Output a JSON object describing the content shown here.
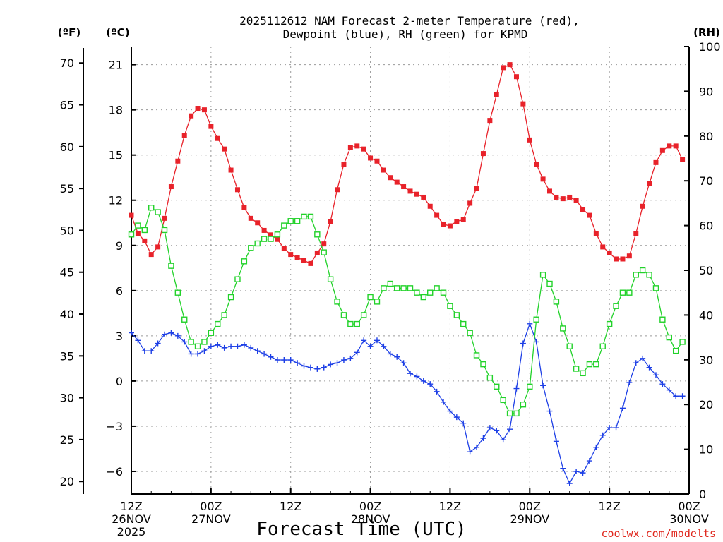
{
  "chart_data": {
    "type": "line",
    "title_line1": "2025112612 NAM Forecast 2-meter Temperature (red),",
    "title_line2": "Dewpoint (blue), RH (green) for KPMD",
    "xlabel": "Forecast Time (UTC)",
    "credit": "coolwx.com/modelts",
    "units": {
      "fahrenheit": "(ºF)",
      "celsius": "(ºC)",
      "rh": "(RH)"
    },
    "x_ticks": [
      {
        "hour": 0,
        "label1": "12Z",
        "label2": "26NOV",
        "label3": "2025"
      },
      {
        "hour": 12,
        "label1": "00Z",
        "label2": "27NOV",
        "label3": ""
      },
      {
        "hour": 24,
        "label1": "12Z",
        "label2": "",
        "label3": ""
      },
      {
        "hour": 36,
        "label1": "00Z",
        "label2": "28NOV",
        "label3": ""
      },
      {
        "hour": 48,
        "label1": "12Z",
        "label2": "",
        "label3": ""
      },
      {
        "hour": 60,
        "label1": "00Z",
        "label2": "29NOV",
        "label3": ""
      },
      {
        "hour": 72,
        "label1": "12Z",
        "label2": "",
        "label3": ""
      },
      {
        "hour": 84,
        "label1": "00Z",
        "label2": "30NOV",
        "label3": ""
      }
    ],
    "x_range": [
      0,
      84
    ],
    "celsius_range": [
      -7.5,
      22.2
    ],
    "celsius_ticks": [
      "21",
      "18",
      "15",
      "12",
      "9",
      "6",
      "3",
      "0",
      "−3",
      "−6"
    ],
    "fahrenheit_ticks": [
      "70",
      "65",
      "60",
      "55",
      "50",
      "45",
      "40",
      "35",
      "30",
      "25",
      "20"
    ],
    "rh_range": [
      0,
      100
    ],
    "rh_ticks": [
      "100",
      "90",
      "80",
      "70",
      "60",
      "50",
      "40",
      "30",
      "20",
      "10",
      "0"
    ],
    "series": [
      {
        "name": "Temperature",
        "unit": "C",
        "color": "#e8222a",
        "marker": "filled-square",
        "values": [
          11.0,
          9.8,
          9.3,
          8.4,
          8.9,
          10.8,
          12.9,
          14.6,
          16.3,
          17.6,
          18.1,
          18.0,
          16.9,
          16.1,
          15.4,
          14.0,
          12.7,
          11.5,
          10.8,
          10.5,
          10.0,
          9.7,
          9.4,
          8.8,
          8.4,
          8.2,
          8.0,
          7.8,
          8.5,
          9.1,
          10.6,
          12.7,
          14.4,
          15.5,
          15.6,
          15.4,
          14.8,
          14.6,
          14.0,
          13.5,
          13.2,
          12.9,
          12.6,
          12.4,
          12.2,
          11.6,
          11.0,
          10.4,
          10.3,
          10.6,
          10.7,
          11.8,
          12.8,
          15.1,
          17.3,
          19.0,
          20.8,
          21.0,
          20.2,
          18.4,
          16.0,
          14.4,
          13.4,
          12.6,
          12.2,
          12.1,
          12.2,
          12.0,
          11.4,
          11.0,
          9.8,
          8.9,
          8.5,
          8.1,
          8.1,
          8.3,
          9.8,
          11.6,
          13.1,
          14.5,
          15.3,
          15.6,
          15.6,
          14.7
        ]
      },
      {
        "name": "Dewpoint",
        "unit": "C",
        "color": "#1d3fe6",
        "marker": "plus",
        "values": [
          3.2,
          2.7,
          2.0,
          2.0,
          2.5,
          3.1,
          3.2,
          3.0,
          2.6,
          1.8,
          1.8,
          2.0,
          2.3,
          2.4,
          2.2,
          2.3,
          2.3,
          2.4,
          2.2,
          2.0,
          1.8,
          1.6,
          1.4,
          1.4,
          1.4,
          1.2,
          1.0,
          0.9,
          0.8,
          0.9,
          1.1,
          1.2,
          1.4,
          1.5,
          1.9,
          2.7,
          2.3,
          2.7,
          2.3,
          1.8,
          1.6,
          1.2,
          0.5,
          0.3,
          0.0,
          -0.2,
          -0.7,
          -1.4,
          -2.0,
          -2.4,
          -2.8,
          -4.7,
          -4.4,
          -3.8,
          -3.1,
          -3.3,
          -3.9,
          -3.2,
          -0.5,
          2.5,
          3.8,
          2.6,
          -0.3,
          -2.0,
          -4.0,
          -5.8,
          -6.8,
          -6.0,
          -6.1,
          -5.3,
          -4.4,
          -3.6,
          -3.1,
          -3.1,
          -1.8,
          -0.1,
          1.2,
          1.5,
          0.9,
          0.4,
          -0.2,
          -0.6,
          -1.0,
          -1.0
        ]
      },
      {
        "name": "RH",
        "unit": "%",
        "color": "#22d22a",
        "marker": "open-square",
        "values": [
          58,
          60,
          59,
          64,
          63,
          59,
          51,
          45,
          39,
          34,
          33,
          34,
          36,
          38,
          40,
          44,
          48,
          52,
          55,
          56,
          57,
          57,
          58,
          60,
          61,
          61,
          62,
          62,
          58,
          54,
          48,
          43,
          40,
          38,
          38,
          40,
          44,
          43,
          46,
          47,
          46,
          46,
          46,
          45,
          44,
          45,
          46,
          45,
          42,
          40,
          38,
          36,
          31,
          29,
          26,
          24,
          21,
          18,
          18,
          20,
          24,
          39,
          49,
          47,
          43,
          37,
          33,
          28,
          27,
          29,
          29,
          33,
          38,
          42,
          45,
          45,
          49,
          50,
          49,
          46,
          39,
          35,
          32,
          34
        ]
      }
    ]
  }
}
